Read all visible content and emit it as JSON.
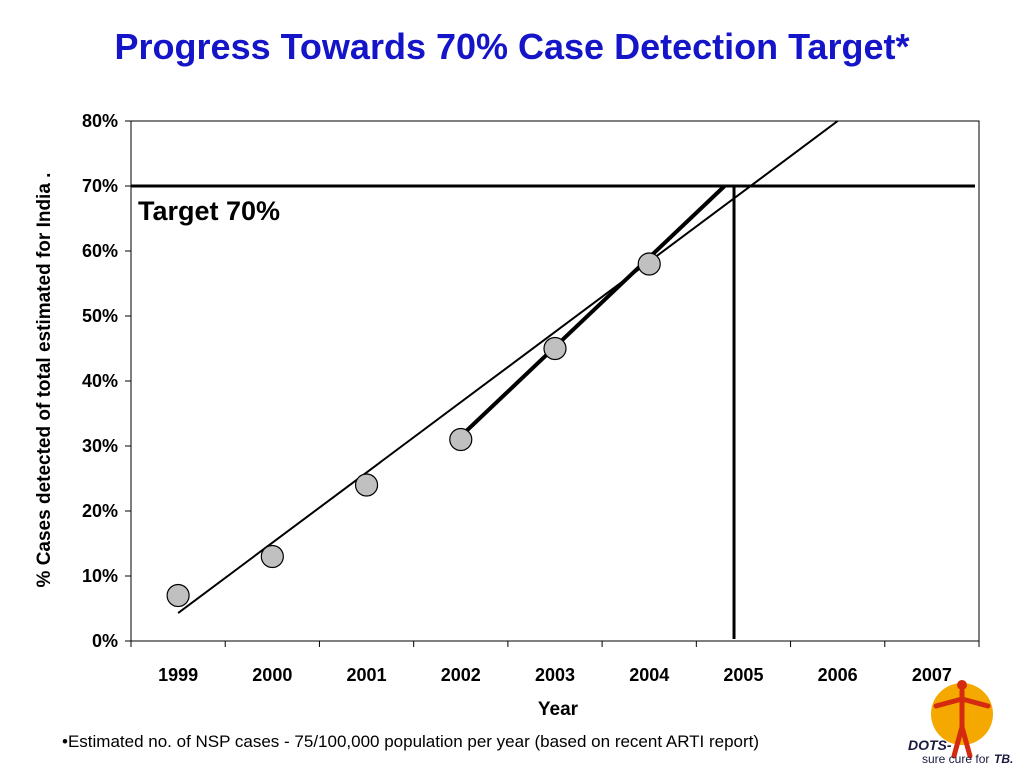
{
  "slide": {
    "title": "Progress Towards 70% Case Detection Target*",
    "footnote": "•Estimated no. of NSP cases - 75/100,000 population per year (based on recent ARTI report)"
  },
  "logo": {
    "text_main": "DOTS-",
    "text_sub": "sure cure for",
    "text_tb": "TB.",
    "colors": {
      "sun": "#f5a800",
      "figure": "#d42a10"
    }
  },
  "chart_data": {
    "type": "scatter",
    "title": "",
    "xlabel": "Year",
    "ylabel": "% Cases detected of total estimated for India  .",
    "categories": [
      "1999",
      "2000",
      "2001",
      "2002",
      "2003",
      "2004",
      "2005",
      "2006",
      "2007"
    ],
    "ylim": [
      0,
      80
    ],
    "yticks": [
      "0%",
      "10%",
      "20%",
      "30%",
      "40%",
      "50%",
      "60%",
      "70%",
      "80%"
    ],
    "series": [
      {
        "x": [
          1999,
          2000,
          2001,
          2002,
          2003,
          2004
        ],
        "values": [
          7,
          13,
          24,
          31,
          45,
          58
        ]
      }
    ],
    "lines": [
      {
        "kind": "fitted-trend",
        "from": [
          1999,
          4.3
        ],
        "to": [
          2006,
          80
        ]
      },
      {
        "kind": "recent-trend",
        "from": [
          2002,
          31.5
        ],
        "to": [
          2004.8,
          70
        ]
      },
      {
        "kind": "target-horizontal",
        "y": 70
      },
      {
        "kind": "target-year-vertical",
        "x": 2004.9
      }
    ],
    "annotation": {
      "text": "Target 70%"
    },
    "grid": false,
    "marker_color": "#c0c0c0"
  }
}
